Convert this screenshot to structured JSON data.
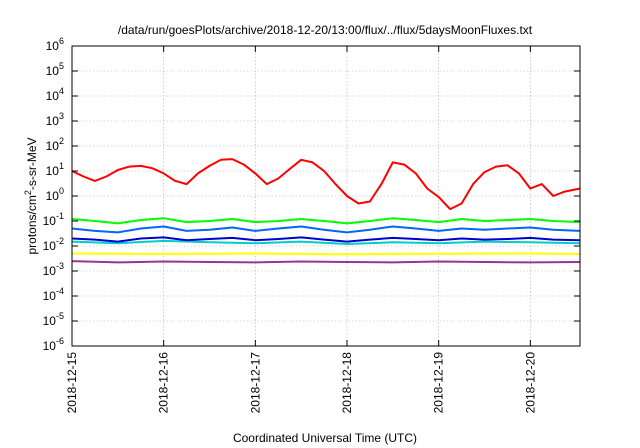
{
  "chart_data": {
    "type": "line",
    "title": "/data/run/goesPlots/archive/2018-12-20/13:00/flux/../flux/5daysMoonFluxes.txt",
    "xlabel": "Coordinated Universal Time (UTC)",
    "ylabel": {
      "pre": "protons/cm",
      "sup": "2",
      "post": "-s-sr-MeV"
    },
    "y_scale": "log",
    "ylim": [
      1e-06,
      1000000.0
    ],
    "y_ticks": [
      {
        "value": 1e-06,
        "base": "10",
        "exp": "-6"
      },
      {
        "value": 1e-05,
        "base": "10",
        "exp": "-5"
      },
      {
        "value": 0.0001,
        "base": "10",
        "exp": "-4"
      },
      {
        "value": 0.001,
        "base": "10",
        "exp": "-3"
      },
      {
        "value": 0.01,
        "base": "10",
        "exp": "-2"
      },
      {
        "value": 0.1,
        "base": "10",
        "exp": "-1"
      },
      {
        "value": 1.0,
        "base": "10",
        "exp": "0"
      },
      {
        "value": 10.0,
        "base": "10",
        "exp": "1"
      },
      {
        "value": 100.0,
        "base": "10",
        "exp": "2"
      },
      {
        "value": 1000.0,
        "base": "10",
        "exp": "3"
      },
      {
        "value": 10000.0,
        "base": "10",
        "exp": "4"
      },
      {
        "value": 100000.0,
        "base": "10",
        "exp": "5"
      },
      {
        "value": 1000000.0,
        "base": "10",
        "exp": "6"
      }
    ],
    "xlim": [
      "2018-12-15T00:00",
      "2018-12-20T13:00"
    ],
    "x_ticks": [
      "2018-12-15",
      "2018-12-16",
      "2018-12-17",
      "2018-12-18",
      "2018-12-19",
      "2018-12-20"
    ],
    "grid": true,
    "legend": "none",
    "series": [
      {
        "color": "#ff0000",
        "x": [
          "2018-12-15T00:00",
          "2018-12-15T03:00",
          "2018-12-15T06:00",
          "2018-12-15T09:00",
          "2018-12-15T12:00",
          "2018-12-15T15:00",
          "2018-12-15T18:00",
          "2018-12-15T21:00",
          "2018-12-16T00:00",
          "2018-12-16T03:00",
          "2018-12-16T06:00",
          "2018-12-16T09:00",
          "2018-12-16T12:00",
          "2018-12-16T15:00",
          "2018-12-16T18:00",
          "2018-12-16T21:00",
          "2018-12-17T00:00",
          "2018-12-17T03:00",
          "2018-12-17T06:00",
          "2018-12-17T09:00",
          "2018-12-17T12:00",
          "2018-12-17T15:00",
          "2018-12-17T18:00",
          "2018-12-17T21:00",
          "2018-12-18T00:00",
          "2018-12-18T03:00",
          "2018-12-18T06:00",
          "2018-12-18T09:00",
          "2018-12-18T12:00",
          "2018-12-18T15:00",
          "2018-12-18T18:00",
          "2018-12-18T21:00",
          "2018-12-19T00:00",
          "2018-12-19T03:00",
          "2018-12-19T06:00",
          "2018-12-19T09:00",
          "2018-12-19T12:00",
          "2018-12-19T15:00",
          "2018-12-19T18:00",
          "2018-12-19T21:00",
          "2018-12-20T00:00",
          "2018-12-20T03:00",
          "2018-12-20T06:00",
          "2018-12-20T09:00",
          "2018-12-20T13:00"
        ],
        "y": [
          10,
          6,
          4,
          6,
          11,
          15,
          16,
          13,
          8,
          4,
          3,
          8,
          16,
          28,
          30,
          18,
          8,
          3,
          5,
          12,
          28,
          22,
          10,
          3,
          1,
          0.5,
          0.6,
          3,
          22,
          18,
          8,
          2,
          0.9,
          0.3,
          0.5,
          3,
          9,
          15,
          17,
          8,
          2,
          3,
          1,
          1.5,
          2
        ]
      },
      {
        "color": "#00ff00",
        "x": [
          "2018-12-15T00:00",
          "2018-12-15T06:00",
          "2018-12-15T12:00",
          "2018-12-15T18:00",
          "2018-12-16T00:00",
          "2018-12-16T06:00",
          "2018-12-16T12:00",
          "2018-12-16T18:00",
          "2018-12-17T00:00",
          "2018-12-17T06:00",
          "2018-12-17T12:00",
          "2018-12-17T18:00",
          "2018-12-18T00:00",
          "2018-12-18T06:00",
          "2018-12-18T12:00",
          "2018-12-18T18:00",
          "2018-12-19T00:00",
          "2018-12-19T06:00",
          "2018-12-19T12:00",
          "2018-12-19T18:00",
          "2018-12-20T00:00",
          "2018-12-20T06:00",
          "2018-12-20T13:00"
        ],
        "y": [
          0.12,
          0.1,
          0.08,
          0.11,
          0.13,
          0.09,
          0.1,
          0.12,
          0.09,
          0.1,
          0.12,
          0.1,
          0.08,
          0.1,
          0.13,
          0.11,
          0.09,
          0.12,
          0.1,
          0.11,
          0.12,
          0.1,
          0.09
        ]
      },
      {
        "color": "#0066ff",
        "x": [
          "2018-12-15T00:00",
          "2018-12-15T06:00",
          "2018-12-15T12:00",
          "2018-12-15T18:00",
          "2018-12-16T00:00",
          "2018-12-16T06:00",
          "2018-12-16T12:00",
          "2018-12-16T18:00",
          "2018-12-17T00:00",
          "2018-12-17T06:00",
          "2018-12-17T12:00",
          "2018-12-17T18:00",
          "2018-12-18T00:00",
          "2018-12-18T06:00",
          "2018-12-18T12:00",
          "2018-12-18T18:00",
          "2018-12-19T00:00",
          "2018-12-19T06:00",
          "2018-12-19T12:00",
          "2018-12-19T18:00",
          "2018-12-20T00:00",
          "2018-12-20T06:00",
          "2018-12-20T13:00"
        ],
        "y": [
          0.05,
          0.04,
          0.035,
          0.05,
          0.06,
          0.04,
          0.045,
          0.055,
          0.04,
          0.05,
          0.06,
          0.045,
          0.035,
          0.045,
          0.06,
          0.05,
          0.04,
          0.05,
          0.045,
          0.05,
          0.055,
          0.045,
          0.04
        ]
      },
      {
        "color": "#00cccc",
        "x": [
          "2018-12-15T00:00",
          "2018-12-15T12:00",
          "2018-12-16T00:00",
          "2018-12-16T12:00",
          "2018-12-17T00:00",
          "2018-12-17T12:00",
          "2018-12-18T00:00",
          "2018-12-18T12:00",
          "2018-12-19T00:00",
          "2018-12-19T12:00",
          "2018-12-20T00:00",
          "2018-12-20T13:00"
        ],
        "y": [
          0.015,
          0.013,
          0.016,
          0.014,
          0.013,
          0.015,
          0.012,
          0.014,
          0.013,
          0.015,
          0.014,
          0.013
        ]
      },
      {
        "color": "#0000cc",
        "x": [
          "2018-12-15T00:00",
          "2018-12-15T06:00",
          "2018-12-15T12:00",
          "2018-12-15T18:00",
          "2018-12-16T00:00",
          "2018-12-16T06:00",
          "2018-12-16T12:00",
          "2018-12-16T18:00",
          "2018-12-17T00:00",
          "2018-12-17T06:00",
          "2018-12-17T12:00",
          "2018-12-17T18:00",
          "2018-12-18T00:00",
          "2018-12-18T06:00",
          "2018-12-18T12:00",
          "2018-12-18T18:00",
          "2018-12-19T00:00",
          "2018-12-19T06:00",
          "2018-12-19T12:00",
          "2018-12-19T18:00",
          "2018-12-20T00:00",
          "2018-12-20T06:00",
          "2018-12-20T13:00"
        ],
        "y": [
          0.02,
          0.018,
          0.015,
          0.02,
          0.022,
          0.017,
          0.019,
          0.021,
          0.017,
          0.019,
          0.022,
          0.018,
          0.015,
          0.018,
          0.021,
          0.019,
          0.017,
          0.02,
          0.018,
          0.019,
          0.021,
          0.018,
          0.017
        ]
      },
      {
        "color": "#ffff00",
        "x": [
          "2018-12-15T00:00",
          "2018-12-16T00:00",
          "2018-12-17T00:00",
          "2018-12-18T00:00",
          "2018-12-19T00:00",
          "2018-12-20T00:00",
          "2018-12-20T13:00"
        ],
        "y": [
          0.005,
          0.0048,
          0.005,
          0.0047,
          0.0049,
          0.005,
          0.0048
        ]
      },
      {
        "color": "#993399",
        "x": [
          "2018-12-15T00:00",
          "2018-12-15T12:00",
          "2018-12-16T00:00",
          "2018-12-16T12:00",
          "2018-12-17T00:00",
          "2018-12-17T12:00",
          "2018-12-18T00:00",
          "2018-12-18T12:00",
          "2018-12-19T00:00",
          "2018-12-19T12:00",
          "2018-12-20T00:00",
          "2018-12-20T13:00"
        ],
        "y": [
          0.0025,
          0.0022,
          0.0024,
          0.0023,
          0.0022,
          0.0024,
          0.0023,
          0.0022,
          0.0024,
          0.0023,
          0.0022,
          0.0023
        ]
      }
    ]
  }
}
